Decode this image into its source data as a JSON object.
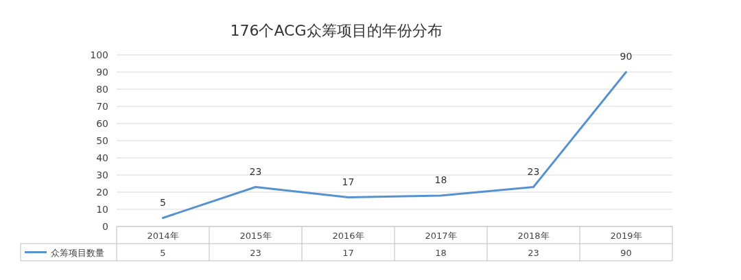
{
  "chart_data": {
    "type": "line",
    "title": "176个ACG众筹项目的年份分布",
    "categories": [
      "2014年",
      "2015年",
      "2016年",
      "2017年",
      "2018年",
      "2019年"
    ],
    "series": [
      {
        "name": "众筹项目数量",
        "color": "#5592cf",
        "values": [
          5,
          23,
          17,
          18,
          23,
          90
        ],
        "value_labels": [
          "5",
          "23",
          "17",
          "18",
          "23",
          "90"
        ]
      }
    ],
    "ylim": [
      0,
      100
    ],
    "yticks": [
      0,
      10,
      20,
      30,
      40,
      50,
      60,
      70,
      80,
      90,
      100
    ],
    "annotations": [
      "5",
      "23",
      "17",
      "18",
      "23",
      "90"
    ],
    "grid": "y",
    "legend": "bottom",
    "data_labels": true
  }
}
